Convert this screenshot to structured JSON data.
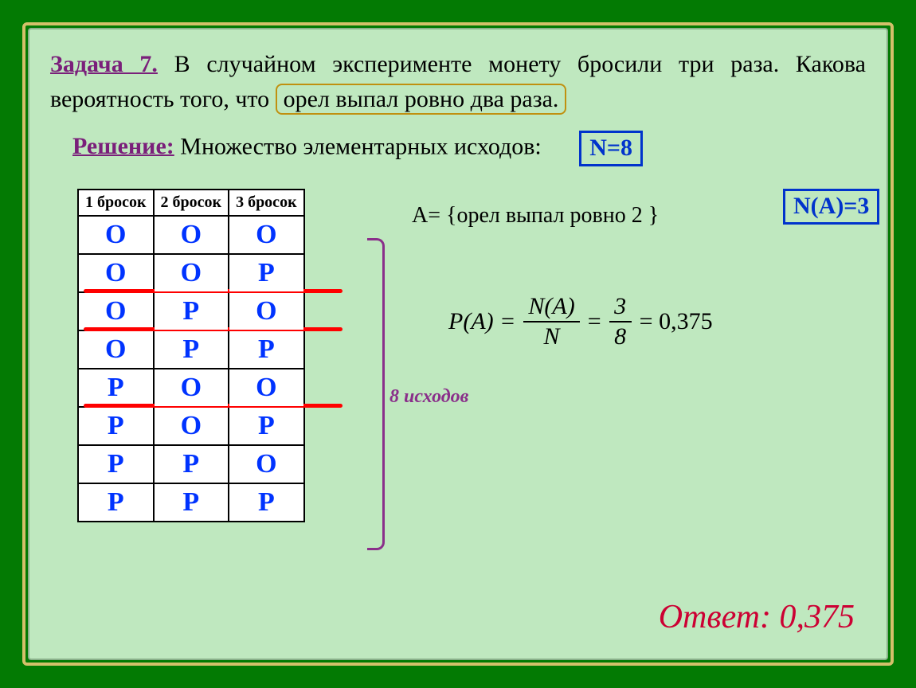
{
  "task": {
    "label": "Задача 7.",
    "text_part1": " В случайном эксперименте монету бросили три раза. Какова вероятность того, что ",
    "highlight": "орел выпал ровно два раза."
  },
  "solution": {
    "label": "Решение:",
    "text": " Множество элементарных исходов:"
  },
  "n_box": "N=8",
  "na_box": "N(А)=3",
  "table": {
    "headers": [
      "1 бросок",
      "2 бросок",
      "3 бросок"
    ],
    "rows": [
      [
        "О",
        "О",
        "О"
      ],
      [
        "О",
        "О",
        "Р"
      ],
      [
        "О",
        "Р",
        "О"
      ],
      [
        "О",
        "Р",
        "Р"
      ],
      [
        "Р",
        "О",
        "О"
      ],
      [
        "Р",
        "О",
        "Р"
      ],
      [
        "Р",
        "Р",
        "О"
      ],
      [
        "Р",
        "Р",
        "Р"
      ]
    ],
    "underlined_rows": [
      1,
      2,
      4
    ],
    "bracket_label": "8 исходов"
  },
  "event": {
    "text": "А= {орел выпал ровно 2 }"
  },
  "formula": {
    "lhs": "P(A)",
    "frac1_num": "N(A)",
    "frac1_den": "N",
    "frac2_num": "3",
    "frac2_den": "8",
    "result": "0,375"
  },
  "answer": {
    "label": "Ответ:",
    "value": "0,375"
  },
  "styling": {
    "page_bg": "#037a03",
    "panel_bg": "#bfe8bf",
    "frame_color": "#d4c06a",
    "accent_purple": "#7a1f7a",
    "blue_text": "#0033ff",
    "blue_box_border": "#0033cc",
    "highlight_border": "#c09010",
    "red_underline": "#ff0000",
    "bracket_color": "#8a2f8a",
    "answer_color": "#cc0033",
    "body_font_size": 30,
    "table_letter_size": 34,
    "answer_font_size": 42
  }
}
